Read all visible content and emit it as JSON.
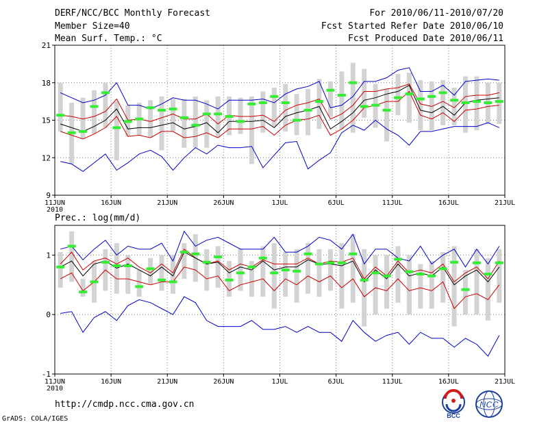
{
  "header": {
    "title": "DERF/NCC/BCC Monthly Forecast",
    "member_size": "Member Size=40",
    "variable": "Mean Surf. Temp.: °C",
    "period": "For 2010/06/11-2010/07/20",
    "start_date": "Fcst Started Refer Date 2010/06/10",
    "produced_date": "Fcst Produced Date 2010/06/11"
  },
  "footer": {
    "url": "http://cmdp.ncc.cma.gov.cn",
    "credit": "GrADS: COLA/IGES",
    "logo_left": "BCC",
    "logo_right": "NCC"
  },
  "colors": {
    "box": "#d3d3d3",
    "median": "#33ee33",
    "mean": "#000000",
    "lower": "#cc0000",
    "outer": "#0000cc",
    "grid": "#777777"
  },
  "chart_data": [
    {
      "type": "line",
      "title": "Mean Surf. Temp.: °C",
      "x_ticks": [
        "11JUN",
        "16JUN",
        "21JUN",
        "26JUN",
        "1JUL",
        "6JUL",
        "11JUL",
        "16JUL",
        "21JUL"
      ],
      "x_year": "2010",
      "x_days": 40,
      "ylim": [
        9,
        21
      ],
      "y_ticks": [
        "9",
        "12",
        "15",
        "18",
        "21"
      ],
      "series": [
        {
          "name": "max",
          "values": [
            17.2,
            16.8,
            16.4,
            16.6,
            17.0,
            18.0,
            16.2,
            16.2,
            15.9,
            16.3,
            16.8,
            16.6,
            16.6,
            16.3,
            15.9,
            16.6,
            16.6,
            16.6,
            16.7,
            16.4,
            17.1,
            17.5,
            17.7,
            18.1,
            16.0,
            16.2,
            16.9,
            18.1,
            18.1,
            18.4,
            19.0,
            19.2,
            17.3,
            17.3,
            17.8,
            17.0,
            18.1,
            18.2,
            18.3,
            18.2
          ]
        },
        {
          "name": "upper",
          "values": [
            15.4,
            15.3,
            15.1,
            15.3,
            15.7,
            16.7,
            15.0,
            15.1,
            14.9,
            15.2,
            15.5,
            15.1,
            15.1,
            15.5,
            14.7,
            15.4,
            15.3,
            15.3,
            15.4,
            14.9,
            15.8,
            16.2,
            16.4,
            16.7,
            15.1,
            15.5,
            16.2,
            17.3,
            17.3,
            17.5,
            17.6,
            17.9,
            16.3,
            16.1,
            16.5,
            16.0,
            16.9,
            17.0,
            17.0,
            17.2
          ]
        },
        {
          "name": "mean",
          "values": [
            14.7,
            14.4,
            14.1,
            14.5,
            15.0,
            15.9,
            14.3,
            14.4,
            14.4,
            14.6,
            14.8,
            14.3,
            14.5,
            14.8,
            14.0,
            14.9,
            14.9,
            14.9,
            15.0,
            14.4,
            15.3,
            15.6,
            15.8,
            16.1,
            14.3,
            14.9,
            15.6,
            16.6,
            16.8,
            17.1,
            17.3,
            17.8,
            15.8,
            15.6,
            16.1,
            15.4,
            16.4,
            16.6,
            16.7,
            16.8
          ]
        },
        {
          "name": "lower",
          "values": [
            14.1,
            13.8,
            13.5,
            13.9,
            14.4,
            15.3,
            13.7,
            13.8,
            13.6,
            14.1,
            14.1,
            13.6,
            13.7,
            14.0,
            13.6,
            14.3,
            14.3,
            14.3,
            14.5,
            13.8,
            14.6,
            15.0,
            15.1,
            15.4,
            13.8,
            14.3,
            15.0,
            16.0,
            16.2,
            16.5,
            16.5,
            17.3,
            15.4,
            15.1,
            15.6,
            14.9,
            15.8,
            15.9,
            16.1,
            16.2
          ]
        },
        {
          "name": "min",
          "values": [
            11.7,
            11.5,
            10.9,
            11.6,
            12.3,
            11.0,
            11.6,
            12.3,
            12.6,
            12.1,
            11.0,
            12.0,
            12.8,
            12.3,
            13.0,
            12.8,
            12.8,
            12.9,
            11.2,
            12.2,
            13.2,
            13.3,
            11.1,
            11.8,
            12.4,
            14.0,
            14.6,
            14.2,
            15.0,
            14.3,
            13.8,
            13.0,
            14.1,
            14.1,
            14.3,
            14.5,
            14.5,
            14.5,
            14.8,
            14.4
          ]
        },
        {
          "name": "median",
          "values": [
            15.4,
            14.0,
            14.1,
            16.1,
            17.2,
            14.4,
            14.9,
            15.1,
            16.0,
            15.8,
            15.9,
            15.2,
            14.6,
            15.5,
            15.5,
            15.3,
            14.9,
            16.3,
            16.4,
            16.9,
            16.4,
            15.0,
            15.8,
            16.5,
            17.4,
            17.0,
            18.0,
            16.1,
            16.2,
            15.8,
            16.8,
            17.1,
            16.7,
            16.9,
            17.2,
            16.6,
            16.4,
            16.5,
            16.4,
            16.5
          ]
        },
        {
          "name": "box_low",
          "values": [
            14.1,
            11.5,
            13.5,
            13.9,
            14.4,
            11.8,
            13.7,
            13.8,
            13.6,
            12.6,
            14.1,
            12.8,
            12.8,
            12.8,
            13.6,
            13.8,
            13.9,
            11.5,
            14.0,
            14.5,
            14.1,
            13.8,
            13.8,
            14.3,
            15.3,
            14.3,
            14.0,
            15.2,
            14.4,
            13.3,
            15.4,
            14.8,
            14.2,
            14.2,
            14.6,
            14.6,
            14.0,
            14.2,
            14.7,
            14.7
          ]
        },
        {
          "name": "box_high",
          "values": [
            18.0,
            16.4,
            16.8,
            17.4,
            18.0,
            16.5,
            16.2,
            16.4,
            16.6,
            16.9,
            16.7,
            16.7,
            16.9,
            16.6,
            16.9,
            16.9,
            16.8,
            16.9,
            17.3,
            17.6,
            17.9,
            17.1,
            17.5,
            18.3,
            18.1,
            18.9,
            19.6,
            19.1,
            17.9,
            17.5,
            18.7,
            18.8,
            18.2,
            18.1,
            18.2,
            17.6,
            18.5,
            18.5,
            18.0,
            18.0
          ]
        }
      ]
    },
    {
      "type": "line",
      "title": "Prec.: log(mm/d)",
      "x_ticks": [
        "11JUN",
        "16JUN",
        "21JUN",
        "26JUN",
        "1JUL",
        "6JUL",
        "11JUL",
        "16JUL",
        "21JUL"
      ],
      "x_year": "2010",
      "x_days": 40,
      "ylim": [
        -1,
        1.5
      ],
      "y_ticks": [
        "-1",
        "0",
        "1"
      ],
      "series": [
        {
          "name": "max",
          "values": [
            1.1,
            1.15,
            0.92,
            1.1,
            1.25,
            1.0,
            1.15,
            1.1,
            1.1,
            1.2,
            0.9,
            1.4,
            1.15,
            1.25,
            1.3,
            1.2,
            1.1,
            1.1,
            1.1,
            1.3,
            1.05,
            1.05,
            1.15,
            1.3,
            1.25,
            1.1,
            1.35,
            0.85,
            1.1,
            1.1,
            0.95,
            0.9,
            1.15,
            0.85,
            1.0,
            1.1,
            0.8,
            1.1,
            0.85,
            1.15
          ]
        },
        {
          "name": "upper",
          "values": [
            0.85,
            1.05,
            0.75,
            0.9,
            0.95,
            0.85,
            0.95,
            0.8,
            0.7,
            0.85,
            0.7,
            1.1,
            0.95,
            0.85,
            0.9,
            0.75,
            0.85,
            0.8,
            0.92,
            0.85,
            0.85,
            0.85,
            0.95,
            0.85,
            0.9,
            0.88,
            0.95,
            0.6,
            0.8,
            0.65,
            0.9,
            0.7,
            0.75,
            0.7,
            0.85,
            0.55,
            0.7,
            0.8,
            0.6,
            0.9
          ]
        },
        {
          "name": "mean",
          "values": [
            0.8,
            0.9,
            0.65,
            0.85,
            0.9,
            0.78,
            0.85,
            0.75,
            0.65,
            0.8,
            0.65,
            1.05,
            0.95,
            0.85,
            0.88,
            0.7,
            0.8,
            0.75,
            0.9,
            0.75,
            0.8,
            0.8,
            0.92,
            0.85,
            0.85,
            0.82,
            0.9,
            0.55,
            0.75,
            0.6,
            0.85,
            0.65,
            0.7,
            0.65,
            0.8,
            0.5,
            0.65,
            0.75,
            0.55,
            0.8
          ]
        },
        {
          "name": "lower",
          "values": [
            0.6,
            0.7,
            0.4,
            0.55,
            0.75,
            0.6,
            0.6,
            0.55,
            0.5,
            0.55,
            0.55,
            0.8,
            0.75,
            0.6,
            0.65,
            0.4,
            0.5,
            0.55,
            0.6,
            0.4,
            0.6,
            0.5,
            0.65,
            0.55,
            0.65,
            0.45,
            0.6,
            0.3,
            0.45,
            0.4,
            0.6,
            0.4,
            0.45,
            0.4,
            0.55,
            0.1,
            0.3,
            0.35,
            0.25,
            0.5
          ]
        },
        {
          "name": "min",
          "values": [
            0.02,
            0.05,
            -0.3,
            -0.05,
            0.05,
            -0.1,
            0.15,
            0.25,
            0.2,
            0.1,
            0.0,
            0.3,
            0.2,
            -0.1,
            -0.2,
            -0.2,
            -0.2,
            -0.1,
            -0.25,
            -0.25,
            -0.2,
            -0.3,
            -0.2,
            -0.3,
            -0.3,
            -0.45,
            -0.1,
            -0.3,
            -0.45,
            -0.35,
            -0.3,
            -0.5,
            -0.3,
            -0.4,
            -0.4,
            -0.55,
            -0.4,
            -0.5,
            -0.7,
            -0.35
          ]
        },
        {
          "name": "median",
          "values": [
            0.8,
            1.15,
            0.38,
            0.55,
            0.88,
            0.82,
            0.82,
            0.47,
            0.77,
            0.58,
            0.55,
            1.05,
            1.02,
            0.88,
            0.97,
            0.58,
            0.7,
            0.8,
            0.95,
            0.7,
            0.75,
            0.73,
            1.02,
            0.85,
            0.87,
            0.87,
            1.02,
            0.58,
            0.7,
            0.65,
            0.93,
            0.72,
            0.68,
            0.65,
            0.77,
            0.88,
            0.42,
            0.87,
            0.68,
            0.87
          ]
        },
        {
          "name": "box_low",
          "values": [
            0.45,
            0.55,
            0.3,
            0.2,
            0.4,
            0.35,
            0.35,
            0.3,
            0.5,
            0.4,
            0.35,
            0.6,
            0.55,
            0.4,
            0.45,
            0.3,
            0.4,
            0.3,
            0.3,
            0.1,
            0.3,
            0.2,
            0.35,
            0.3,
            0.4,
            0.1,
            0.2,
            -0.2,
            0.0,
            0.1,
            0.2,
            0.0,
            0.1,
            0.1,
            0.2,
            -0.2,
            0.0,
            0.0,
            -0.1,
            0.2
          ]
        },
        {
          "name": "box_high",
          "values": [
            1.05,
            1.4,
            0.6,
            0.9,
            1.1,
            1.2,
            1.0,
            0.75,
            0.95,
            1.0,
            1.0,
            1.2,
            1.35,
            1.1,
            1.15,
            0.9,
            1.1,
            0.9,
            1.15,
            1.2,
            1.05,
            1.1,
            1.2,
            1.1,
            1.1,
            1.2,
            1.35,
            1.1,
            1.0,
            1.0,
            1.15,
            1.0,
            0.85,
            0.9,
            1.05,
            1.15,
            0.75,
            1.1,
            0.95,
            1.1
          ]
        }
      ]
    }
  ]
}
